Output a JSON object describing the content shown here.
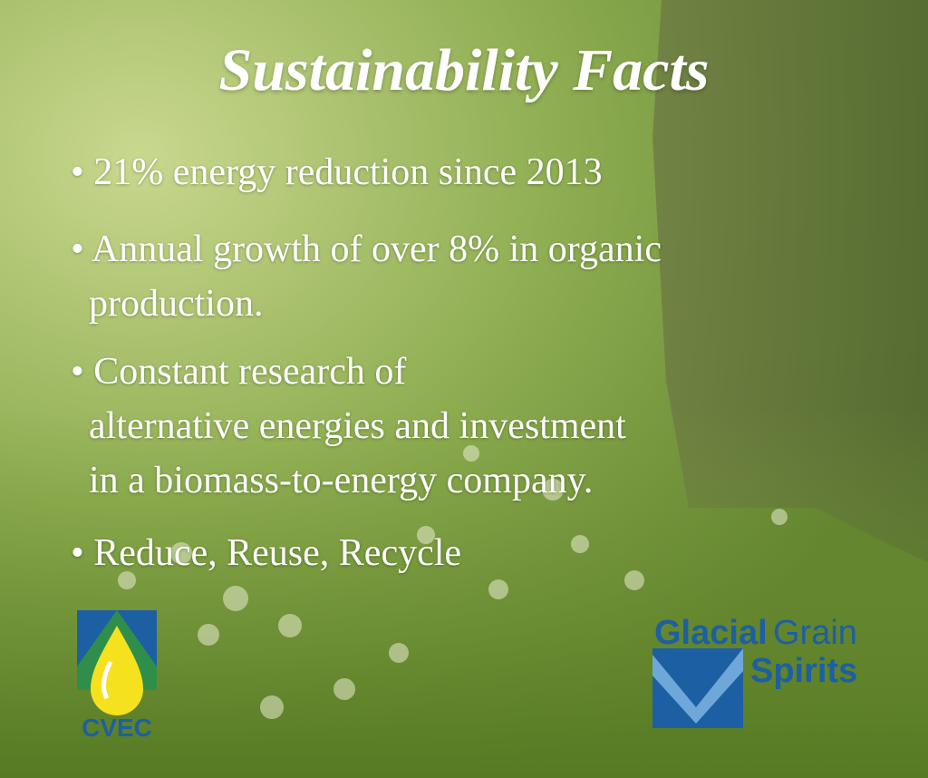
{
  "title": "Sustainability Facts",
  "items": [
    [
      "• 21% energy reduction since 2013"
    ],
    [
      "• Annual growth of over 8% in organic",
      "production."
    ],
    [
      "• Constant research of",
      "alternative energies and investment",
      "in a biomass-to-energy company."
    ],
    [
      "• Reduce, Reuse, Recycle"
    ]
  ],
  "logos": {
    "cvec": "CVEC",
    "glacial": "Glacial",
    "grain": "Grain",
    "spirits": "Spirits"
  }
}
